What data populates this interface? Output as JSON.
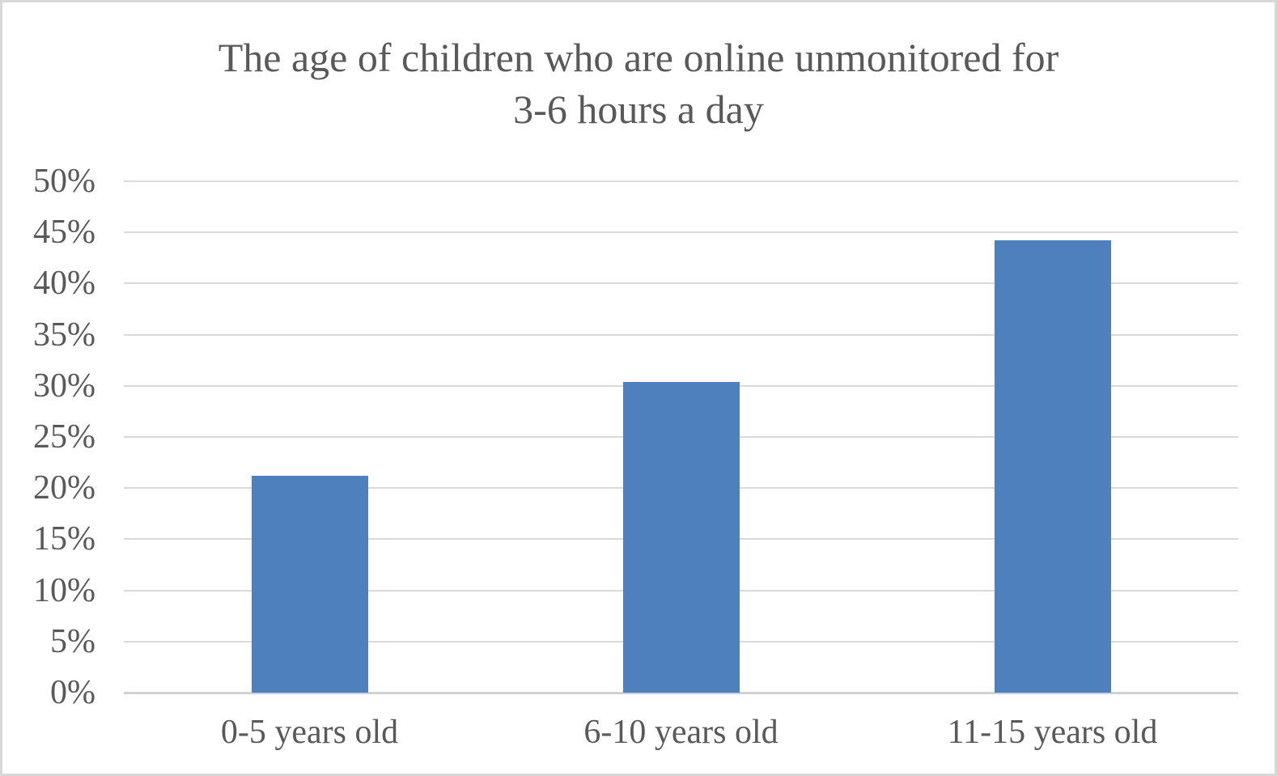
{
  "header": {
    "title_line1": "The age of children who are online unmonitored for",
    "title_line2": "3-6 hours a day"
  },
  "chart_data": {
    "type": "bar",
    "title": "The age of children who are online unmonitored for 3-6 hours a day",
    "categories": [
      "0-5 years old",
      "6-10 years old",
      "11-15 years old"
    ],
    "values": [
      21.2,
      30.4,
      44.2
    ],
    "xlabel": "",
    "ylabel": "",
    "ylim": [
      0,
      50
    ],
    "ytick_step": 5,
    "ytick_labels": [
      "0%",
      "5%",
      "10%",
      "15%",
      "20%",
      "25%",
      "30%",
      "35%",
      "40%",
      "45%",
      "50%"
    ],
    "grid": true,
    "legend": null,
    "colors": {
      "bar": "#4e80bd",
      "title_text": "#595959",
      "tick_text": "#595959",
      "gridline": "#dadada",
      "axis_line": "#d2d2d2",
      "chart_border": "#d8d8d8",
      "background": "#ffffff"
    }
  }
}
